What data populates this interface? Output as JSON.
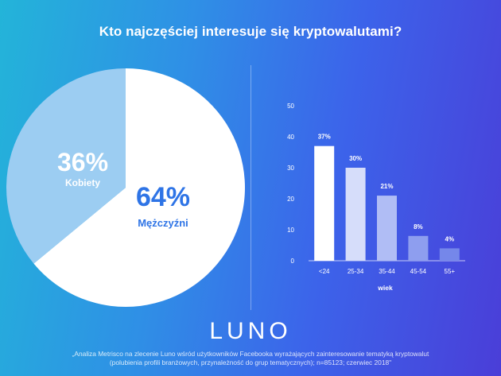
{
  "title": "Kto najczęściej interesuje się kryptowalutami?",
  "logo": "LUNO",
  "footnote_line1": "„Analiza Metrisco na zlecenie Luno wśród użytkowników Facebooka wyrażających zainteresowanie tematyką kryptowalut",
  "footnote_line2": "(polubienia profili branżowych, przynależność do grup tematycznych); n=85123; czerwiec 2018\"",
  "chart_data": [
    {
      "type": "pie",
      "slices": [
        {
          "label": "Mężczyźni",
          "value": 64,
          "display": "64%",
          "color": "#ffffff",
          "text_color": "#2e74e6"
        },
        {
          "label": "Kobiety",
          "value": 36,
          "display": "36%",
          "color": "#9ccdf2",
          "text_color": "#ffffff"
        }
      ]
    },
    {
      "type": "bar",
      "categories": [
        "<24",
        "25-34",
        "35-44",
        "45-54",
        "55+"
      ],
      "values": [
        37,
        30,
        21,
        8,
        4
      ],
      "labels": [
        "37%",
        "30%",
        "21%",
        "8%",
        "4%"
      ],
      "colors": [
        "#ffffff",
        "#d6ddfa",
        "#b0bdf5",
        "#8e9eef",
        "#7587ea"
      ],
      "xlabel": "wiek",
      "ylabel": "",
      "ylim": [
        0,
        50
      ],
      "yticks": [
        0,
        10,
        20,
        30,
        40,
        50
      ],
      "grid": false
    }
  ]
}
